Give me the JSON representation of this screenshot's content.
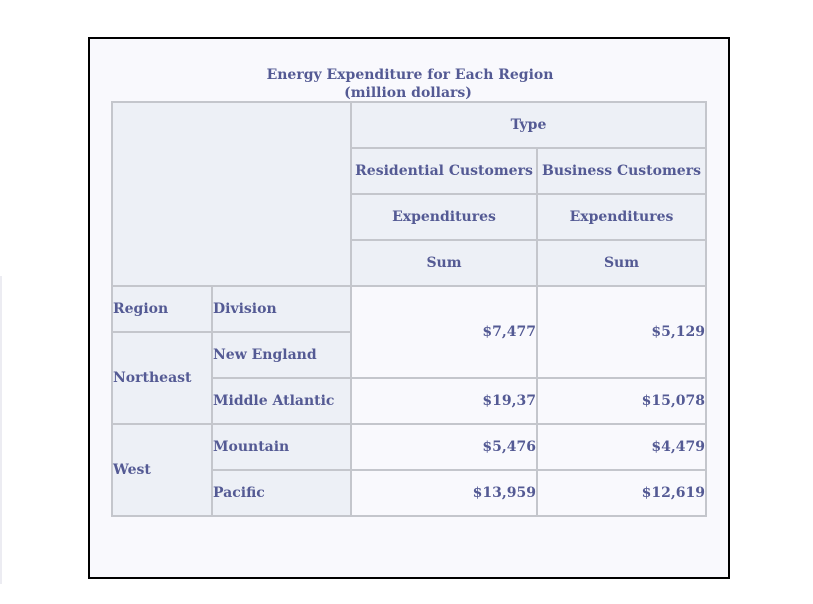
{
  "report": {
    "title": "Energy Expenditure for Each Region",
    "subtitle": "(million dollars)",
    "column_headers": {
      "type": "Type",
      "residential": "Residential Customers",
      "business": "Business Customers",
      "measure": "Expenditures",
      "statistic": "Sum"
    },
    "row_headers": {
      "region": "Region",
      "division": "Division"
    },
    "regions": [
      {
        "name": "Northeast",
        "divisions": [
          {
            "name": "New England",
            "residential": "$7,477",
            "business": "$5,129"
          },
          {
            "name": "Middle Atlantic",
            "residential": "$19,37",
            "business": "$15,078"
          }
        ]
      },
      {
        "name": "West",
        "divisions": [
          {
            "name": "Mountain",
            "residential": "$5,476",
            "business": "$4,479"
          },
          {
            "name": "Pacific",
            "residential": "$13,959",
            "business": "$12,619"
          }
        ]
      }
    ]
  }
}
